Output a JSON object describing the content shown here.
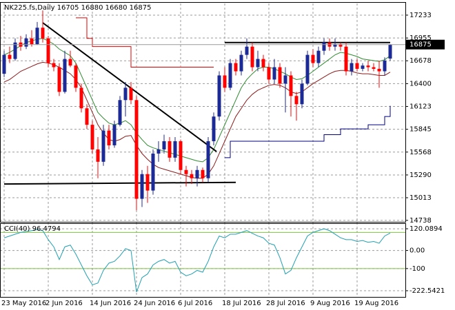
{
  "chart_data": [
    {
      "type": "candlestick",
      "title": "NK225.fs,Daily 16705 16880 16680 16875",
      "categories": [
        "23 May 2016",
        null,
        null,
        null,
        null,
        null,
        null,
        null,
        "2 Jun 2016",
        null,
        null,
        null,
        null,
        null,
        null,
        null,
        "14 Jun 2016",
        null,
        null,
        null,
        null,
        null,
        null,
        null,
        "24 Jun 2016",
        null,
        null,
        null,
        null,
        null,
        null,
        null,
        "6 Jul 2016",
        null,
        null,
        null,
        null,
        null,
        null,
        null,
        "18 Jul 2016",
        null,
        null,
        null,
        null,
        null,
        null,
        null,
        "28 Jul 2016",
        null,
        null,
        null,
        null,
        null,
        null,
        null,
        "9 Aug 2016",
        null,
        null,
        null,
        null,
        null,
        null,
        null,
        "19 Aug 2016",
        null,
        null,
        null,
        null,
        null,
        null
      ],
      "open": [
        16520,
        16750,
        16700,
        16900,
        16850,
        16950,
        16880,
        17080,
        16950,
        16650,
        16600,
        16300,
        16700,
        16620,
        16350,
        16100,
        15900,
        15600,
        15450,
        15830,
        15650,
        15900,
        16200,
        16350,
        16200,
        15000,
        15300,
        15100,
        15550,
        15600,
        15700,
        15500,
        15700,
        15350,
        15300,
        15250,
        15350,
        15250,
        15700,
        16000,
        16500,
        16350,
        16650,
        16550,
        16750,
        16850,
        16600,
        16700,
        16600,
        16450,
        16600,
        16400,
        16500,
        16250,
        16150,
        16400,
        16750,
        16650,
        16800,
        16900,
        16850,
        16880,
        16850,
        16550,
        16650,
        16580,
        16620,
        16600,
        16580,
        16550,
        16705
      ],
      "high": [
        16800,
        16850,
        16950,
        16980,
        17000,
        17050,
        17150,
        17290,
        16980,
        16700,
        16650,
        16800,
        16800,
        16650,
        16400,
        16150,
        15950,
        15750,
        15900,
        15900,
        15950,
        16250,
        16420,
        16420,
        16250,
        15350,
        15400,
        15600,
        15700,
        15780,
        15750,
        15750,
        15720,
        15400,
        15350,
        15400,
        15380,
        15750,
        16050,
        16550,
        16600,
        16700,
        16700,
        16800,
        16950,
        16900,
        16800,
        16750,
        16650,
        16700,
        16650,
        16600,
        16550,
        16300,
        16450,
        16800,
        16820,
        16850,
        16950,
        16950,
        16950,
        16900,
        16900,
        16700,
        16700,
        16650,
        16680,
        16650,
        16680,
        16720,
        16880
      ],
      "low": [
        16480,
        16650,
        16680,
        16800,
        16820,
        16850,
        16870,
        16900,
        16600,
        16550,
        16250,
        16280,
        16600,
        16300,
        16050,
        15850,
        15550,
        15250,
        15400,
        15600,
        15620,
        15880,
        16000,
        16150,
        14860,
        14900,
        14950,
        15050,
        15450,
        15550,
        15450,
        15450,
        15300,
        15150,
        15180,
        15150,
        15200,
        15200,
        15650,
        15950,
        16300,
        16320,
        16500,
        16500,
        16700,
        16550,
        16550,
        16550,
        16400,
        16400,
        16350,
        16050,
        16000,
        15950,
        16100,
        16380,
        16600,
        16600,
        16750,
        16800,
        16800,
        16800,
        16500,
        16500,
        16550,
        16550,
        16550,
        16550,
        16350,
        16500,
        16680
      ],
      "close": [
        16750,
        16700,
        16900,
        16850,
        16950,
        16880,
        17080,
        16950,
        16650,
        16600,
        16300,
        16700,
        16620,
        16350,
        16100,
        15900,
        15600,
        15450,
        15830,
        15650,
        15900,
        16200,
        16350,
        16200,
        15000,
        15300,
        15100,
        15550,
        15600,
        15700,
        15500,
        15700,
        15350,
        15300,
        15250,
        15350,
        15250,
        15700,
        16000,
        16500,
        16350,
        16650,
        16550,
        16750,
        16850,
        16600,
        16700,
        16600,
        16450,
        16600,
        16400,
        16500,
        16250,
        16150,
        16400,
        16750,
        16650,
        16800,
        16900,
        16850,
        16880,
        16850,
        16550,
        16650,
        16580,
        16620,
        16600,
        16580,
        16550,
        16680,
        16875
      ],
      "up_color": "#1c2a96",
      "down_color": "#ff0000",
      "overlays": [
        {
          "color": "#2e8b2e",
          "step": false,
          "values": [
            16750,
            16780,
            16820,
            16860,
            16900,
            16920,
            16940,
            16950,
            16920,
            16880,
            16820,
            16780,
            16740,
            16650,
            16500,
            16350,
            16200,
            16050,
            15980,
            15920,
            15900,
            15920,
            15950,
            15900,
            15800,
            15720,
            15650,
            15620,
            15600,
            15580,
            15560,
            15540,
            15520,
            15500,
            15480,
            15460,
            15450,
            15500,
            15600,
            15750,
            15900,
            16050,
            16200,
            16350,
            16450,
            16520,
            16580,
            16600,
            16600,
            16580,
            16550,
            16520,
            16480,
            16450,
            16460,
            16500,
            16550,
            16600,
            16650,
            16700,
            16750,
            16780,
            16770,
            16750,
            16730,
            16700,
            16690,
            16680,
            16670,
            16690,
            16740
          ]
        },
        {
          "color": "#8b1a1a",
          "step": false,
          "values": [
            16420,
            16450,
            16500,
            16550,
            16580,
            16610,
            16640,
            16660,
            16650,
            16630,
            16600,
            16560,
            16520,
            16450,
            16350,
            16200,
            16050,
            15900,
            15800,
            15720,
            15700,
            15720,
            15760,
            15770,
            15650,
            15550,
            15480,
            15420,
            15380,
            15360,
            15340,
            15320,
            15300,
            15280,
            15260,
            15250,
            15250,
            15300,
            15400,
            15550,
            15700,
            15850,
            16000,
            16100,
            16200,
            16270,
            16320,
            16350,
            16380,
            16390,
            16380,
            16350,
            16300,
            16280,
            16300,
            16350,
            16400,
            16440,
            16480,
            16520,
            16550,
            16560,
            16560,
            16550,
            16530,
            16520,
            16520,
            16510,
            16500,
            16500,
            16540
          ]
        },
        {
          "color": "#e00000",
          "step": true,
          "values": [
            null,
            null,
            null,
            null,
            null,
            null,
            null,
            null,
            null,
            null,
            null,
            null,
            null,
            17200,
            17200,
            16950,
            16850,
            16850,
            16850,
            16850,
            16850,
            16850,
            16850,
            16600,
            16600,
            16600,
            16600,
            16600,
            16600,
            16600,
            16600,
            16600,
            16600,
            16600,
            16600,
            16600,
            16600,
            16600,
            16600,
            null,
            null,
            null,
            null,
            null,
            null,
            null,
            null,
            null,
            null,
            null,
            null,
            null,
            null,
            null,
            null,
            null,
            null,
            null,
            null,
            null,
            null,
            null,
            null,
            null,
            null,
            null,
            null,
            null,
            null,
            null,
            null
          ]
        },
        {
          "color": "#000080",
          "step": true,
          "values": [
            null,
            null,
            null,
            null,
            null,
            null,
            null,
            null,
            null,
            null,
            null,
            null,
            null,
            null,
            null,
            null,
            null,
            null,
            null,
            null,
            null,
            null,
            null,
            null,
            null,
            null,
            null,
            null,
            null,
            null,
            null,
            null,
            null,
            null,
            null,
            null,
            null,
            null,
            null,
            null,
            15500,
            15700,
            15700,
            15700,
            15700,
            15700,
            15700,
            15700,
            15700,
            15700,
            15700,
            15700,
            15700,
            15700,
            15700,
            15700,
            15700,
            15700,
            15780,
            15780,
            15780,
            15850,
            15850,
            15850,
            15850,
            15850,
            15900,
            15900,
            15900,
            16000,
            16130
          ]
        }
      ],
      "trendlines": [
        {
          "x": [
            0,
            42
          ],
          "values": [
            15180,
            15200
          ]
        },
        {
          "x": [
            7,
            38.5
          ],
          "values": [
            17140,
            15575
          ]
        },
        {
          "x": [
            40,
            70
          ],
          "values": [
            16900,
            16900
          ]
        }
      ],
      "trendline_color": "#000000",
      "ylim": [
        14720,
        17375
      ],
      "yticks": [
        17233,
        16955,
        16678,
        16400,
        16123,
        15845,
        15568,
        15290,
        15013,
        14738
      ],
      "grid": true
    },
    {
      "type": "line",
      "title": "CCI(40) 96.4794",
      "color": "#20a0b0",
      "values": [
        70,
        80,
        90,
        100,
        105,
        110,
        115,
        110,
        60,
        20,
        -50,
        20,
        30,
        -20,
        -80,
        -140,
        -190,
        -180,
        -110,
        -70,
        -60,
        -30,
        10,
        0,
        -230,
        -150,
        -130,
        -80,
        -60,
        -50,
        -70,
        -60,
        -120,
        -140,
        -130,
        -110,
        -120,
        -60,
        20,
        80,
        70,
        90,
        90,
        100,
        110,
        95,
        80,
        70,
        40,
        30,
        -40,
        -130,
        -110,
        -40,
        20,
        80,
        100,
        110,
        120,
        110,
        90,
        70,
        60,
        60,
        50,
        55,
        45,
        50,
        40,
        80,
        96.4794
      ],
      "levels": [
        100,
        -100
      ],
      "level_color": "#7fc241",
      "ylim": [
        -253,
        147
      ],
      "yticks": [
        {
          "value": 120.0894,
          "label": "120.0894"
        },
        {
          "value": 0,
          "label": "0.00"
        },
        {
          "value": -100,
          "label": "-100"
        },
        {
          "value": -222.5421,
          "label": "-222.5421"
        }
      ],
      "grid": true
    }
  ]
}
